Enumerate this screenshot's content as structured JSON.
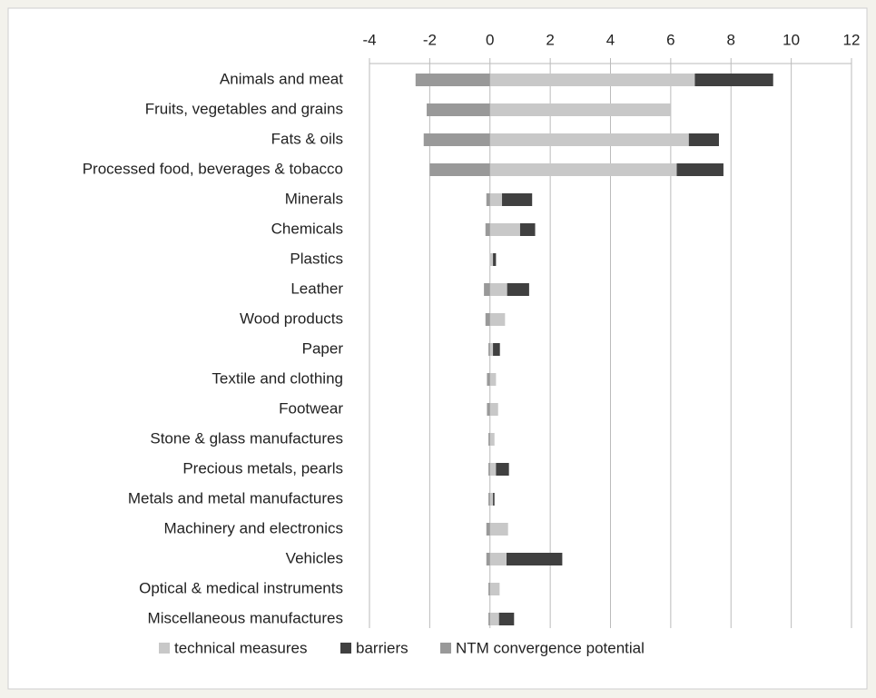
{
  "chart_data": {
    "type": "bar",
    "orientation": "horizontal",
    "stacked": true,
    "categories": [
      "Animals and meat",
      "Fruits, vegetables and grains",
      "Fats & oils",
      "Processed food, beverages & tobacco",
      "Minerals",
      "Chemicals",
      "Plastics",
      "Leather",
      "Wood products",
      "Paper",
      "Textile and clothing",
      "Footwear",
      "Stone & glass manufactures",
      "Precious metals, pearls",
      "Metals and metal manufactures",
      "Machinery and electronics",
      "Vehicles",
      "Optical & medical instruments",
      "Miscellaneous manufactures"
    ],
    "series": [
      {
        "name": "technical measures",
        "color": "#c8c8c8",
        "values": [
          6.8,
          6.0,
          6.6,
          6.2,
          0.4,
          1.0,
          0.1,
          0.57,
          0.5,
          0.1,
          0.2,
          0.27,
          0.15,
          0.2,
          0.1,
          0.6,
          0.55,
          0.32,
          0.3
        ]
      },
      {
        "name": "barriers",
        "color": "#404040",
        "values": [
          2.6,
          0,
          1.0,
          1.55,
          1.0,
          0.5,
          0.1,
          0.73,
          0,
          0.23,
          0,
          0,
          0,
          0.43,
          0.05,
          0,
          1.85,
          0,
          0.5
        ]
      },
      {
        "name": "NTM convergence potential",
        "color": "#999999",
        "values": [
          -2.47,
          -2.1,
          -2.2,
          -2.0,
          -0.12,
          -0.15,
          0,
          -0.2,
          -0.15,
          -0.05,
          -0.1,
          -0.1,
          -0.05,
          -0.05,
          -0.05,
          -0.12,
          -0.12,
          -0.05,
          -0.05
        ]
      }
    ],
    "xlim": [
      -4,
      12
    ],
    "xticks": [
      -4,
      -2,
      0,
      2,
      4,
      6,
      8,
      10,
      12
    ],
    "grid": true,
    "legend": "bottom"
  }
}
